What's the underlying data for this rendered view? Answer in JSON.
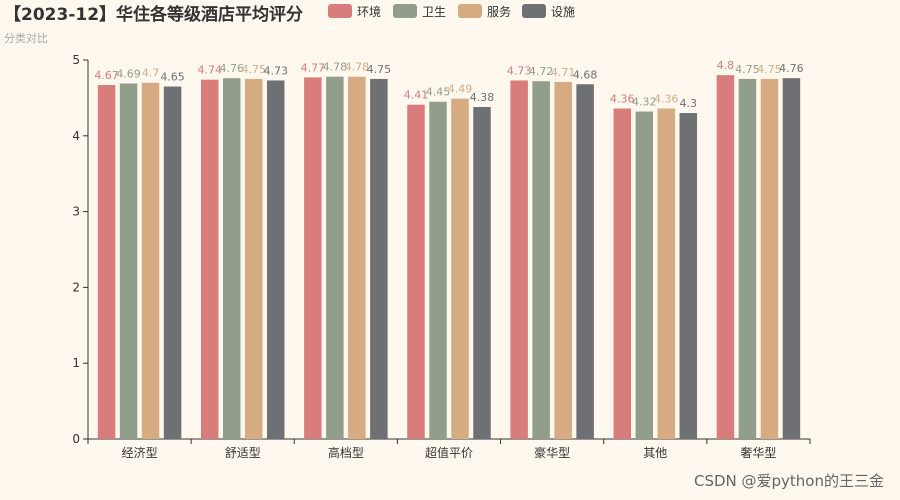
{
  "title": "【2023-12】华住各等级酒店平均评分",
  "subtitle": "分类对比",
  "watermark": "CSDN @爱python的王三金",
  "chart_data": {
    "type": "bar",
    "categories": [
      "经济型",
      "舒适型",
      "高档型",
      "超值平价",
      "豪华型",
      "其他",
      "奢华型"
    ],
    "series": [
      {
        "name": "环境",
        "color": "#d87c7c",
        "label_color": "#d87c7c",
        "values": [
          4.67,
          4.74,
          4.77,
          4.41,
          4.73,
          4.36,
          4.8
        ]
      },
      {
        "name": "卫生",
        "color": "#919e8b",
        "label_color": "#919e8b",
        "values": [
          4.69,
          4.76,
          4.78,
          4.45,
          4.72,
          4.32,
          4.75
        ]
      },
      {
        "name": "服务",
        "color": "#d7ab82",
        "label_color": "#d7ab82",
        "values": [
          4.7,
          4.75,
          4.78,
          4.49,
          4.71,
          4.36,
          4.75
        ]
      },
      {
        "name": "设施",
        "color": "#6e7074",
        "label_color": "#6e7074",
        "values": [
          4.65,
          4.73,
          4.75,
          4.38,
          4.68,
          4.3,
          4.76
        ]
      }
    ],
    "ylim": [
      0,
      5
    ],
    "yticks": [
      0,
      1,
      2,
      3,
      4,
      5
    ],
    "grid": false,
    "legend": "top"
  }
}
